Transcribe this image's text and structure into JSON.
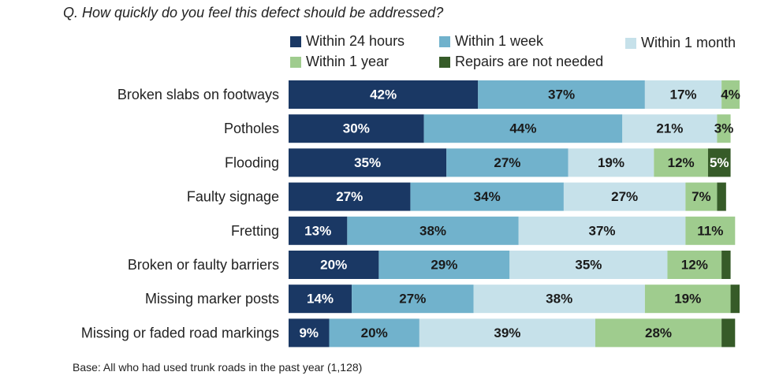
{
  "question": "Q. How quickly do you feel this defect should be addressed?",
  "footnote": "Base: All who had used trunk roads in the past year (1,128)",
  "chart_data": {
    "type": "bar",
    "orientation": "horizontal",
    "stacked": true,
    "normalized_percent": true,
    "xlim": [
      0,
      100
    ],
    "legend_position": "top",
    "categories": [
      "Broken slabs on footways",
      "Potholes",
      "Flooding",
      "Faulty signage",
      "Fretting",
      "Broken or faulty barriers",
      "Missing marker posts",
      "Missing or faded road markings"
    ],
    "series": [
      {
        "name": "Within 24 hours",
        "color": "#1a3864",
        "label_color": "#ffffff",
        "values": [
          42,
          30,
          35,
          27,
          13,
          20,
          14,
          9
        ]
      },
      {
        "name": "Within 1 week",
        "color": "#71b2cc",
        "label_color": "#1a1a1a",
        "values": [
          37,
          44,
          27,
          34,
          38,
          29,
          27,
          20
        ]
      },
      {
        "name": "Within 1 month",
        "color": "#c6e1ea",
        "label_color": "#1a1a1a",
        "values": [
          17,
          21,
          19,
          27,
          37,
          35,
          38,
          39
        ]
      },
      {
        "name": "Within 1 year",
        "color": "#9fcc8e",
        "label_color": "#1a1a1a",
        "values": [
          4,
          3,
          12,
          7,
          11,
          12,
          19,
          28
        ]
      },
      {
        "name": "Repairs are not needed",
        "color": "#365b28",
        "label_color": "#ffffff",
        "values": [
          0,
          0,
          5,
          2,
          0,
          2,
          2,
          3
        ]
      }
    ],
    "data_labels": [
      [
        "42%",
        "37%",
        "17%",
        "4%",
        ""
      ],
      [
        "30%",
        "44%",
        "21%",
        "3%",
        ""
      ],
      [
        "35%",
        "27%",
        "19%",
        "12%",
        "5%"
      ],
      [
        "27%",
        "34%",
        "27%",
        "7%",
        ""
      ],
      [
        "13%",
        "38%",
        "37%",
        "11%",
        ""
      ],
      [
        "20%",
        "29%",
        "35%",
        "12%",
        ""
      ],
      [
        "14%",
        "27%",
        "38%",
        "19%",
        ""
      ],
      [
        "9%",
        "20%",
        "39%",
        "28%",
        ""
      ]
    ]
  }
}
